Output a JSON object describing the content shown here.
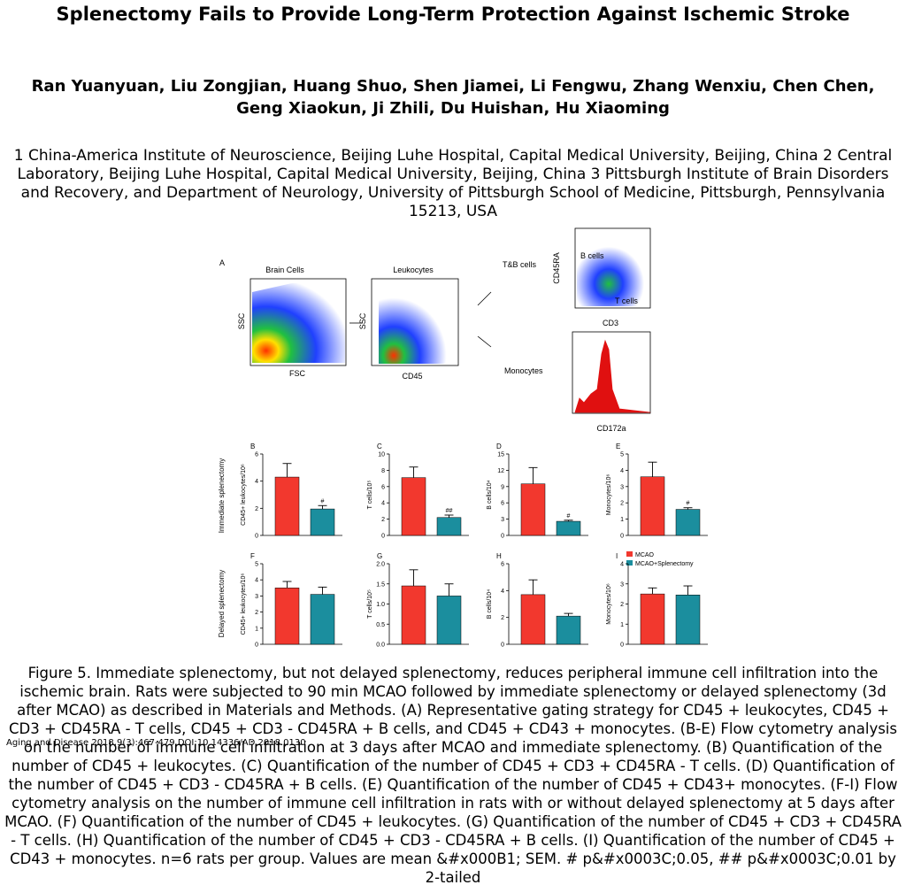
{
  "header": {
    "title": "Splenectomy Fails to Provide Long-Term Protection Against Ischemic Stroke",
    "authors": [
      "Ran Yuanyuan, Liu Zongjian, Huang Shuo, Shen Jiamei, Li Fengwu, Zhang Wenxiu, Chen Chen,",
      "Geng Xiaokun, Ji Zhili, Du Huishan, Hu Xiaoming"
    ],
    "affiliation": "1 China-America Institute of Neuroscience, Beijing Luhe Hospital, Capital Medical University, Beijing, China 2 Central Laboratory, Beijing Luhe Hospital, Capital Medical University, Beijing, China 3 Pittsburgh Institute of Brain Disorders and Recovery, and Department of Neurology, University of Pittsburgh School of Medicine, Pittsburgh, Pennsylvania 15213, USA"
  },
  "figure": {
    "panel_a": {
      "label": "A",
      "brain_cells": "Brain Cells",
      "leukocytes": "Leukocytes",
      "ssc": "SSC",
      "fsc": "FSC",
      "cd45": "CD45",
      "tb_cells": "T&B cells",
      "monocytes": "Monocytes",
      "b_cells": "B cells",
      "t_cells": "T cells",
      "cd45ra": "CD45RA",
      "cd3": "CD3",
      "cd172a": "CD172a"
    },
    "row_labels": [
      "Immediate splenectomy",
      "Delayed splenectomy"
    ],
    "legend": [
      {
        "name": "MCAO",
        "color": "#f2382e"
      },
      {
        "name": "MCAO+Splenectomy",
        "color": "#1b8e9e"
      }
    ]
  },
  "chart_data": [
    {
      "type": "bar",
      "label": "B",
      "ylabel": "CD45+ leukocytes/10⁶",
      "values": [
        4.3,
        1.95
      ],
      "errors": [
        1.0,
        0.25
      ],
      "value_annotations": [
        null,
        "#"
      ],
      "ylim": [
        0,
        6
      ],
      "yticks": [
        0,
        2,
        4,
        6
      ]
    },
    {
      "type": "bar",
      "label": "C",
      "ylabel": "T cells/10⁵",
      "values": [
        7.1,
        2.2
      ],
      "errors": [
        1.3,
        0.3
      ],
      "value_annotations": [
        null,
        "##"
      ],
      "ylim": [
        0,
        10
      ],
      "yticks": [
        0,
        2,
        4,
        6,
        8,
        10
      ]
    },
    {
      "type": "bar",
      "label": "D",
      "ylabel": "B cells/10⁴",
      "values": [
        9.5,
        2.6
      ],
      "errors": [
        3.0,
        0.2
      ],
      "value_annotations": [
        null,
        "#"
      ],
      "ylim": [
        0,
        15
      ],
      "yticks": [
        0,
        3,
        6,
        9,
        12,
        15
      ]
    },
    {
      "type": "bar",
      "label": "E",
      "ylabel": "Monocytes/10⁶",
      "values": [
        3.6,
        1.6
      ],
      "errors": [
        0.9,
        0.1
      ],
      "value_annotations": [
        null,
        "#"
      ],
      "ylim": [
        0,
        5
      ],
      "yticks": [
        0,
        1,
        2,
        3,
        4,
        5
      ]
    },
    {
      "type": "bar",
      "label": "F",
      "ylabel": "CD45+ leukocytes/10⁶",
      "values": [
        3.5,
        3.1
      ],
      "errors": [
        0.4,
        0.45
      ],
      "value_annotations": [
        null,
        null
      ],
      "ylim": [
        0,
        5
      ],
      "yticks": [
        0,
        1,
        2,
        3,
        4,
        5
      ]
    },
    {
      "type": "bar",
      "label": "G",
      "ylabel": "T cells/10⁵",
      "values": [
        1.45,
        1.2
      ],
      "errors": [
        0.4,
        0.3
      ],
      "value_annotations": [
        null,
        null
      ],
      "ylim": [
        0,
        2
      ],
      "yticks": [
        {
          "value": 0,
          "label": "0.0"
        },
        0.5,
        {
          "value": 1,
          "label": "1.0"
        },
        1.5,
        {
          "value": 2,
          "label": "2.0"
        }
      ]
    },
    {
      "type": "bar",
      "label": "H",
      "ylabel": "B cells/10⁴",
      "values": [
        3.7,
        2.1
      ],
      "errors": [
        1.1,
        0.2
      ],
      "value_annotations": [
        null,
        null
      ],
      "ylim": [
        0,
        6
      ],
      "yticks": [
        0,
        2,
        4,
        6
      ]
    },
    {
      "type": "bar",
      "label": "I",
      "ylabel": "Monocytes/10⁶",
      "values": [
        2.5,
        2.45
      ],
      "errors": [
        0.3,
        0.45
      ],
      "value_annotations": [
        null,
        null
      ],
      "ylim": [
        0,
        4
      ],
      "yticks": [
        0,
        1,
        2,
        3,
        4
      ]
    }
  ],
  "caption": "Figure 5.   Immediate splenectomy, but not delayed splenectomy, reduces peripheral immune cell infiltration into the ischemic brain. Rats were subjected to 90 min MCAO followed by immediate splenectomy or delayed splenectomy (3d after MCAO) as described in Materials and Methods. (A) Representative gating strategy for CD45 +  leukocytes, CD45 + CD3 + CD45RA -  T cells, CD45 + CD3 - CD45RA +  B cells, and CD45 + CD43 +  monocytes. (B-E) Flow cytometry analysis on the number of immune cell infiltration at 3 days after MCAO and immediate splenectomy. (B) Quantification of the number of CD45 +  leukocytes. (C) Quantification of the number of CD45 + CD3 + CD45RA -  T cells. (D) Quantification of the number of CD45 + CD3 - CD45RA +  B cells. (E) Quantification of the number of CD45 + CD43+ monocytes. (F-I) Flow cytometry analysis on the number of immune cell infiltration in rats with or without delayed splenectomy at 5 days after MCAO. (F) Quantification of the number of CD45 +  leukocytes. (G) Quantification of the number of CD45 + CD3 + CD45RA -  T cells. (H) Quantification of the number of CD45 + CD3 - CD45RA +  B cells. (I) Quantification of the number of CD45 + CD43 +  monocytes. n=6 rats per group. Values are mean &#x000B1; SEM. # p&#x0003C;0.05, ## p&#x0003C;0.01 by 2-tailed",
  "citation": "Aging and Disease 2018,9(3):467-479.DOI:10.14336/AD.2018.0130"
}
